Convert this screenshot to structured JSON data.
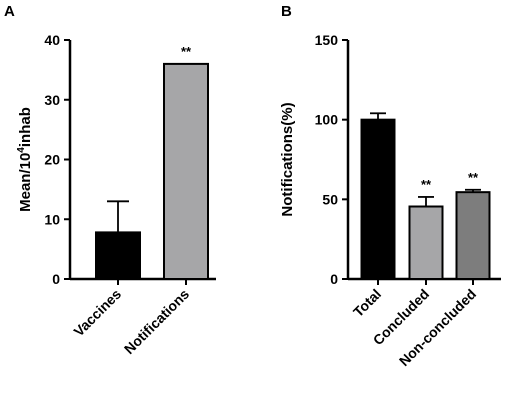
{
  "chart_data": [
    {
      "panel": "A",
      "type": "bar",
      "categories": [
        "Vaccines",
        "Notifications"
      ],
      "values": [
        7.8,
        36
      ],
      "error_upper": [
        13,
        null
      ],
      "significance": [
        "",
        "**"
      ],
      "colors": [
        "#000000",
        "#a6a6a8"
      ],
      "xlabel": "",
      "ylabel": "Mean/10",
      "ylabel_sup": "4",
      "ylabel_tail": "inhab",
      "ylim": [
        0,
        40
      ],
      "yticks": [
        "0",
        "10",
        "20",
        "30",
        "40"
      ]
    },
    {
      "panel": "B",
      "type": "bar",
      "categories": [
        "Total",
        "Concluded",
        "Non-concluded"
      ],
      "values": [
        100,
        45.5,
        54.5
      ],
      "error_upper": [
        104,
        51.5,
        56
      ],
      "significance": [
        "",
        "**",
        "**"
      ],
      "colors": [
        "#000000",
        "#a6a6a8",
        "#7d7d7d"
      ],
      "xlabel": "",
      "ylabel": "Notifications(%)",
      "ylim": [
        0,
        150
      ],
      "yticks": [
        "0",
        "50",
        "100",
        "150"
      ]
    }
  ]
}
